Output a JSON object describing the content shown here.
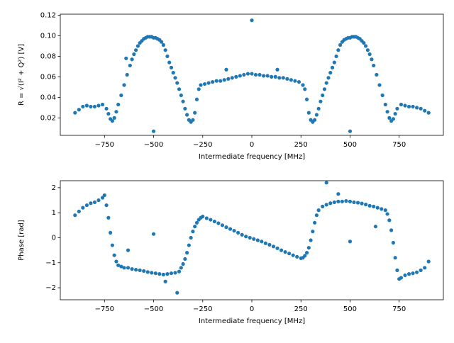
{
  "chart_data": [
    {
      "type": "scatter",
      "xlabel": "Intermediate frequency [MHz]",
      "ylabel": "R = √(I² + Q²) [V]",
      "xlim": [
        -975,
        975
      ],
      "ylim": [
        0.003,
        0.121
      ],
      "xticks": [
        {
          "value": -750,
          "label": "−750"
        },
        {
          "value": -500,
          "label": "−500"
        },
        {
          "value": -250,
          "label": "−250"
        },
        0,
        250,
        500,
        750
      ],
      "yticks": [
        0.02,
        0.04,
        0.06,
        0.08,
        {
          "value": 0.1,
          "label": "0.10"
        },
        0.12
      ],
      "series": [
        {
          "color": "#1f77b4",
          "x": [
            -900,
            -880,
            -860,
            -840,
            -820,
            -800,
            -780,
            -760,
            -740,
            -730,
            -720,
            -710,
            -700,
            -690,
            -680,
            -665,
            -650,
            -635,
            -620,
            -610,
            -600,
            -590,
            -580,
            -570,
            -560,
            -550,
            -540,
            -530,
            -520,
            -510,
            -500,
            -490,
            -480,
            -470,
            -460,
            -450,
            -440,
            -430,
            -420,
            -410,
            -400,
            -390,
            -380,
            -370,
            -360,
            -350,
            -340,
            -330,
            -320,
            -310,
            -300,
            -290,
            -280,
            -270,
            -260,
            -240,
            -220,
            -200,
            -180,
            -160,
            -140,
            -120,
            -100,
            -80,
            -60,
            -40,
            -20,
            0,
            20,
            40,
            60,
            80,
            100,
            120,
            140,
            160,
            180,
            200,
            220,
            240,
            260,
            270,
            280,
            290,
            300,
            310,
            320,
            330,
            340,
            350,
            360,
            370,
            380,
            390,
            400,
            410,
            420,
            430,
            440,
            450,
            460,
            470,
            480,
            490,
            500,
            510,
            520,
            530,
            540,
            550,
            560,
            570,
            580,
            590,
            600,
            610,
            620,
            635,
            650,
            665,
            680,
            690,
            700,
            710,
            720,
            730,
            740,
            760,
            780,
            800,
            820,
            840,
            860,
            880,
            900,
            -500,
            500,
            0,
            -640,
            -130,
            130
          ],
          "values": [
            0.025,
            0.028,
            0.031,
            0.032,
            0.031,
            0.031,
            0.032,
            0.033,
            0.029,
            0.024,
            0.019,
            0.017,
            0.02,
            0.026,
            0.033,
            0.042,
            0.052,
            0.062,
            0.071,
            0.077,
            0.082,
            0.086,
            0.09,
            0.093,
            0.095,
            0.097,
            0.098,
            0.099,
            0.099,
            0.099,
            0.098,
            0.098,
            0.097,
            0.096,
            0.094,
            0.091,
            0.086,
            0.08,
            0.074,
            0.069,
            0.064,
            0.059,
            0.054,
            0.048,
            0.042,
            0.036,
            0.029,
            0.023,
            0.018,
            0.016,
            0.018,
            0.025,
            0.038,
            0.048,
            0.052,
            0.053,
            0.054,
            0.055,
            0.056,
            0.056,
            0.057,
            0.058,
            0.059,
            0.06,
            0.061,
            0.062,
            0.063,
            0.063,
            0.062,
            0.062,
            0.061,
            0.061,
            0.06,
            0.06,
            0.059,
            0.059,
            0.058,
            0.057,
            0.056,
            0.055,
            0.052,
            0.048,
            0.038,
            0.025,
            0.018,
            0.016,
            0.018,
            0.023,
            0.029,
            0.036,
            0.042,
            0.048,
            0.054,
            0.059,
            0.064,
            0.069,
            0.074,
            0.08,
            0.086,
            0.091,
            0.094,
            0.096,
            0.097,
            0.098,
            0.098,
            0.099,
            0.099,
            0.099,
            0.098,
            0.097,
            0.095,
            0.093,
            0.09,
            0.086,
            0.082,
            0.077,
            0.071,
            0.062,
            0.052,
            0.042,
            0.033,
            0.026,
            0.02,
            0.017,
            0.019,
            0.024,
            0.029,
            0.033,
            0.032,
            0.031,
            0.031,
            0.03,
            0.029,
            0.027,
            0.025,
            0.007,
            0.007,
            0.115,
            0.078,
            0.067,
            0.067
          ]
        }
      ]
    },
    {
      "type": "scatter",
      "xlabel": "Intermediate frequency [MHz]",
      "ylabel": "Phase [rad]",
      "xlim": [
        -975,
        975
      ],
      "ylim": [
        -2.48,
        2.28
      ],
      "xticks": [
        {
          "value": -750,
          "label": "−750"
        },
        {
          "value": -500,
          "label": "−500"
        },
        {
          "value": -250,
          "label": "−250"
        },
        0,
        250,
        500,
        750
      ],
      "yticks": [
        {
          "value": -2,
          "label": "−2"
        },
        {
          "value": -1,
          "label": "−1"
        },
        0,
        1,
        2
      ],
      "series": [
        {
          "color": "#1f77b4",
          "x": [
            -900,
            -880,
            -860,
            -840,
            -820,
            -800,
            -780,
            -760,
            -750,
            -740,
            -730,
            -720,
            -710,
            -700,
            -690,
            -680,
            -665,
            -650,
            -630,
            -610,
            -590,
            -570,
            -550,
            -530,
            -510,
            -490,
            -470,
            -450,
            -430,
            -410,
            -390,
            -370,
            -360,
            -350,
            -340,
            -330,
            -320,
            -310,
            -300,
            -290,
            -280,
            -270,
            -260,
            -250,
            -230,
            -210,
            -190,
            -170,
            -150,
            -130,
            -110,
            -90,
            -70,
            -50,
            -30,
            -10,
            10,
            30,
            50,
            70,
            90,
            110,
            130,
            150,
            170,
            190,
            210,
            230,
            250,
            260,
            270,
            280,
            290,
            300,
            310,
            320,
            330,
            340,
            360,
            380,
            400,
            420,
            440,
            460,
            480,
            500,
            520,
            540,
            560,
            580,
            600,
            620,
            640,
            660,
            680,
            690,
            700,
            710,
            720,
            730,
            740,
            750,
            760,
            780,
            800,
            820,
            840,
            860,
            880,
            900,
            380,
            -380,
            -500,
            500,
            -630,
            630,
            440,
            -440
          ],
          "values": [
            0.9,
            1.05,
            1.2,
            1.3,
            1.38,
            1.42,
            1.5,
            1.6,
            1.7,
            1.3,
            0.8,
            0.2,
            -0.3,
            -0.7,
            -0.95,
            -1.1,
            -1.15,
            -1.2,
            -1.2,
            -1.25,
            -1.28,
            -1.3,
            -1.33,
            -1.37,
            -1.4,
            -1.42,
            -1.45,
            -1.47,
            -1.45,
            -1.42,
            -1.4,
            -1.35,
            -1.2,
            -1.05,
            -0.85,
            -0.6,
            -0.3,
            0.0,
            0.25,
            0.45,
            0.6,
            0.72,
            0.8,
            0.85,
            0.78,
            0.72,
            0.65,
            0.58,
            0.5,
            0.42,
            0.35,
            0.28,
            0.2,
            0.12,
            0.05,
            0.0,
            -0.05,
            -0.1,
            -0.15,
            -0.22,
            -0.28,
            -0.35,
            -0.42,
            -0.5,
            -0.57,
            -0.63,
            -0.7,
            -0.76,
            -0.82,
            -0.8,
            -0.72,
            -0.6,
            -0.4,
            -0.1,
            0.25,
            0.6,
            0.9,
            1.1,
            1.25,
            1.32,
            1.38,
            1.42,
            1.45,
            1.45,
            1.47,
            1.45,
            1.42,
            1.4,
            1.37,
            1.33,
            1.28,
            1.25,
            1.2,
            1.15,
            1.1,
            0.95,
            0.7,
            0.3,
            -0.2,
            -0.8,
            -1.3,
            -1.65,
            -1.6,
            -1.5,
            -1.45,
            -1.42,
            -1.38,
            -1.3,
            -1.2,
            -0.95,
            2.2,
            -2.2,
            0.15,
            -0.15,
            -0.5,
            0.45,
            1.75,
            -1.75
          ]
        }
      ]
    }
  ]
}
